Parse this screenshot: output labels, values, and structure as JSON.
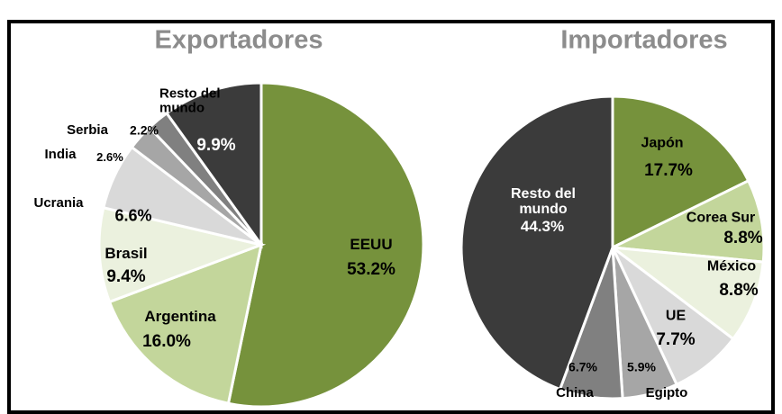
{
  "chart_data": [
    {
      "type": "pie",
      "title": "Exportadores",
      "categories": [
        "EEUU",
        "Argentina",
        "Brasil",
        "Ucrania",
        "India",
        "Serbia",
        "Resto del mundo"
      ],
      "values": [
        53.2,
        16.0,
        9.4,
        6.6,
        2.6,
        2.2,
        9.9
      ],
      "value_labels": [
        "53.2%",
        "16.0%",
        "9.4%",
        "6.6%",
        "2.6%",
        "2.2%",
        "9.9%"
      ],
      "colors": [
        "#76923c",
        "#c3d69b",
        "#ebf1de",
        "#d9d9d9",
        "#a6a6a6",
        "#808080",
        "#3b3b3b"
      ]
    },
    {
      "type": "pie",
      "title": "Importadores",
      "categories": [
        "Japón",
        "Corea Sur",
        "México",
        "UE",
        "Egipto",
        "China",
        "Resto del mundo"
      ],
      "values": [
        17.7,
        8.8,
        8.8,
        7.7,
        5.9,
        6.7,
        44.3
      ],
      "value_labels": [
        "17.7%",
        "8.8%",
        "8.8%",
        "7.7%",
        "5.9%",
        "6.7%",
        "44.3%"
      ],
      "colors": [
        "#76923c",
        "#c3d69b",
        "#ebf1de",
        "#d9d9d9",
        "#a6a6a6",
        "#808080",
        "#3b3b3b"
      ]
    }
  ]
}
